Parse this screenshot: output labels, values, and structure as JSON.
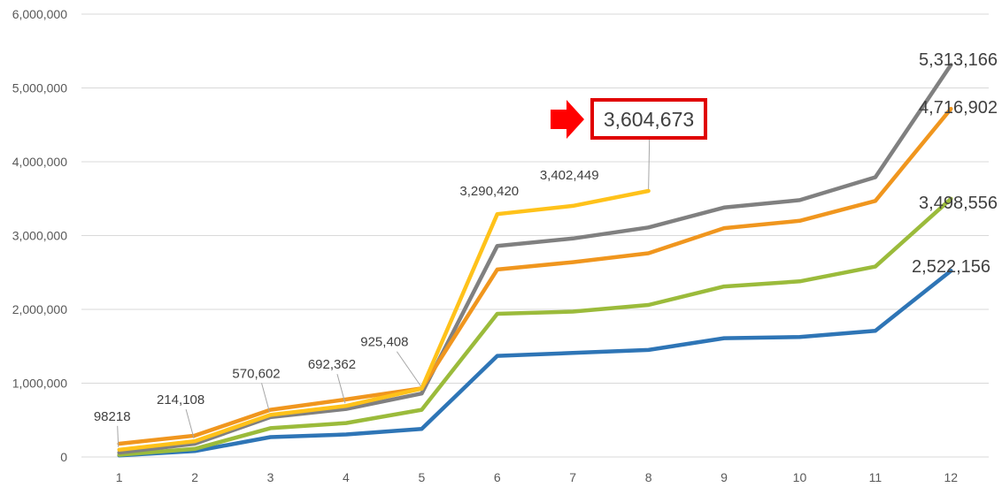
{
  "chart_data": {
    "type": "line",
    "title": "",
    "xlabel": "",
    "ylabel": "",
    "ylim": [
      0,
      6000000
    ],
    "yticks": [
      0,
      1000000,
      2000000,
      3000000,
      4000000,
      5000000,
      6000000
    ],
    "ytick_labels": [
      "0",
      "1,000,000",
      "2,000,000",
      "3,000,000",
      "4,000,000",
      "5,000,000",
      "6,000,000"
    ],
    "categories": [
      "1",
      "2",
      "3",
      "4",
      "5",
      "6",
      "7",
      "8",
      "9",
      "10",
      "11",
      "12"
    ],
    "grid": "horizontal",
    "legend": "none",
    "series": [
      {
        "color": "#2E75B6",
        "values": [
          20000,
          80000,
          270000,
          305000,
          380000,
          1370000,
          1410000,
          1450000,
          1610000,
          1625000,
          1710000,
          2522156
        ]
      },
      {
        "color": "#9BBB3B",
        "values": [
          30000,
          110000,
          390000,
          460000,
          640000,
          1940000,
          1970000,
          2060000,
          2310000,
          2380000,
          2580000,
          3498556
        ]
      },
      {
        "color": "#808080",
        "values": [
          60000,
          180000,
          540000,
          650000,
          860000,
          2860000,
          2960000,
          3110000,
          3380000,
          3480000,
          3790000,
          5313166
        ]
      },
      {
        "color": "#F0961E",
        "values": [
          180000,
          290000,
          640000,
          780000,
          930000,
          2540000,
          2640000,
          2760000,
          3100000,
          3200000,
          3470000,
          4716902
        ]
      },
      {
        "color": "#FFC21A",
        "values": [
          98218,
          214108,
          570602,
          692362,
          925408,
          3290420,
          3402449,
          3604673,
          null,
          null,
          null,
          null
        ]
      }
    ],
    "data_labels": [
      {
        "text": "98218"
      },
      {
        "text": "214,108"
      },
      {
        "text": "570,602"
      },
      {
        "text": "692,362"
      },
      {
        "text": "925,408"
      },
      {
        "text": "3,290,420"
      },
      {
        "text": "3,402,449"
      },
      {
        "text": "5,313,166"
      },
      {
        "text": "4,716,902"
      },
      {
        "text": "3,498,556"
      },
      {
        "text": "2,522,156"
      }
    ],
    "callout": {
      "text": "3,604,673",
      "border_color": "#E00000",
      "arrow_color": "#FF0000"
    }
  }
}
